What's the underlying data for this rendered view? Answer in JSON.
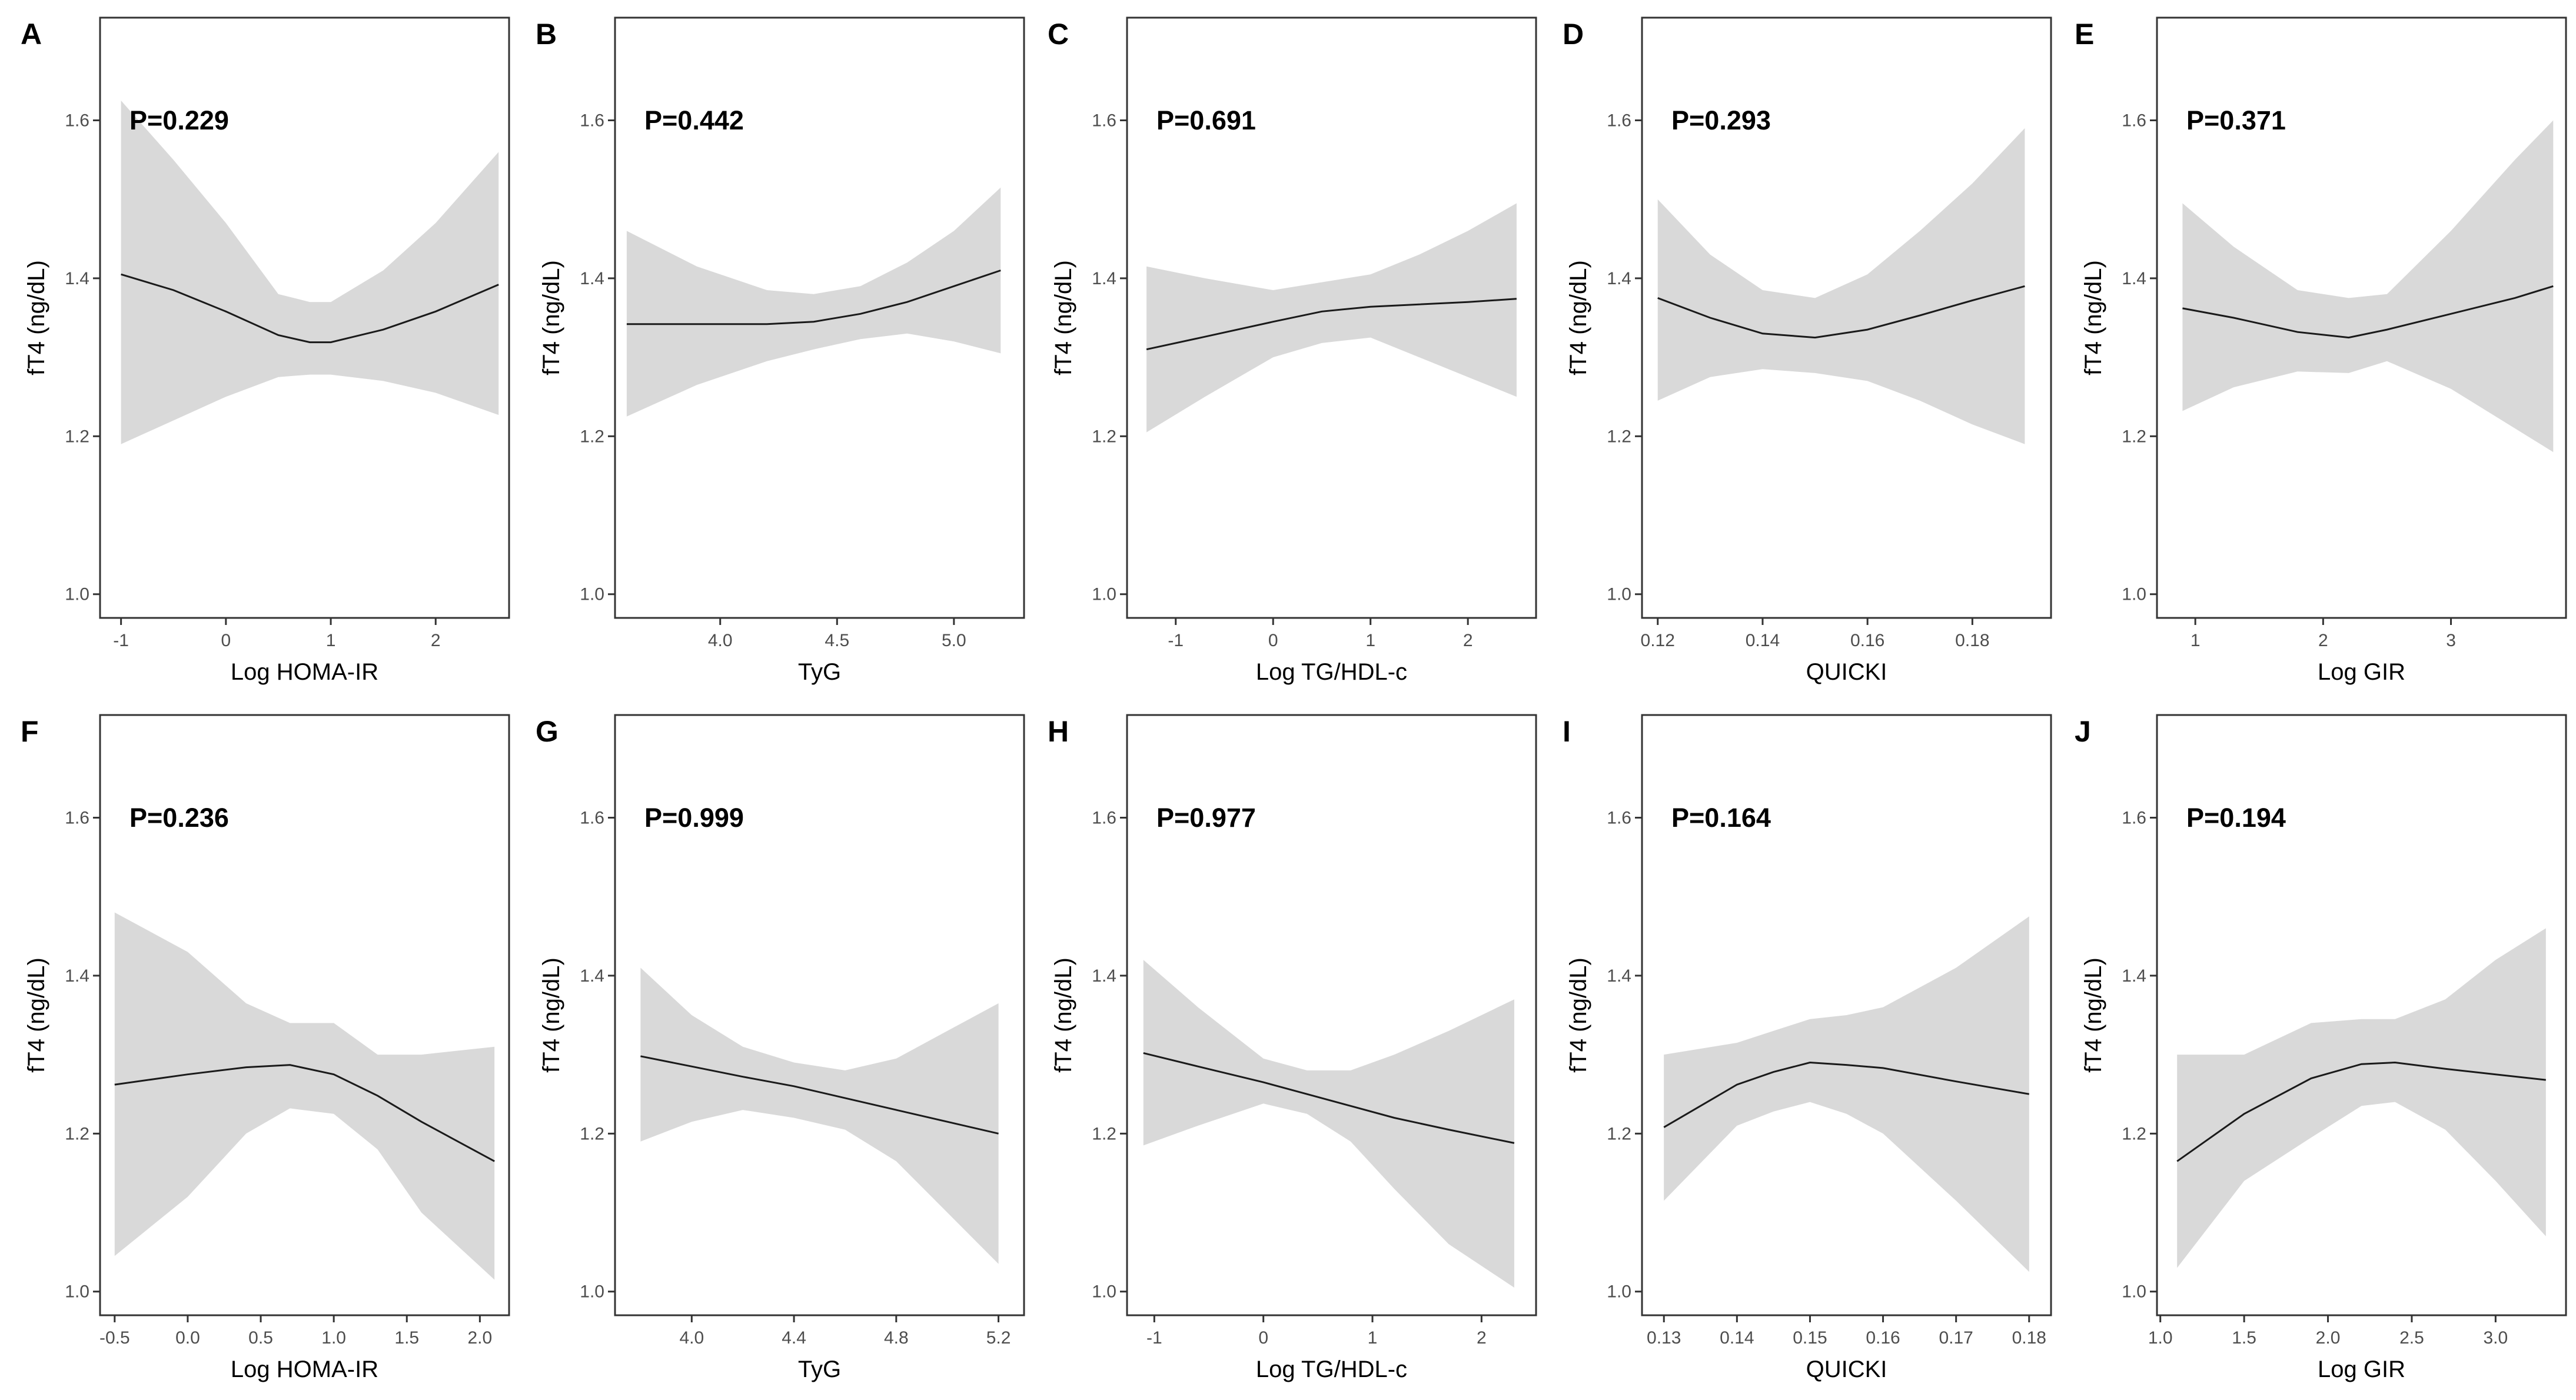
{
  "figure": {
    "y_label": "fT4 (ng/dL)",
    "y_ticks": [
      1.0,
      1.2,
      1.4,
      1.6
    ],
    "y_tick_labels": [
      "1.0",
      "1.2",
      "1.4",
      "1.6"
    ]
  },
  "chart_data": [
    {
      "type": "line",
      "letter": "A",
      "p_label": "P=0.229",
      "xlabel": "Log HOMA-IR",
      "ylabel": "fT4 (ng/dL)",
      "xlim": [
        -1.2,
        2.7
      ],
      "ylim": [
        0.97,
        1.73
      ],
      "x_ticks": [
        -1,
        0,
        1,
        2
      ],
      "x_tick_labels": [
        "-1",
        "0",
        "1",
        "2"
      ],
      "x": [
        -1,
        -0.5,
        0,
        0.5,
        0.8,
        1,
        1.5,
        2,
        2.6
      ],
      "y": [
        1.405,
        1.385,
        1.358,
        1.328,
        1.319,
        1.319,
        1.335,
        1.358,
        1.392
      ],
      "lower": [
        1.19,
        1.22,
        1.25,
        1.275,
        1.278,
        1.278,
        1.27,
        1.255,
        1.227
      ],
      "upper": [
        1.625,
        1.55,
        1.47,
        1.38,
        1.37,
        1.37,
        1.41,
        1.47,
        1.56
      ]
    },
    {
      "type": "line",
      "letter": "B",
      "p_label": "P=0.442",
      "xlabel": "TyG",
      "ylabel": "fT4 (ng/dL)",
      "xlim": [
        3.55,
        5.3
      ],
      "ylim": [
        0.97,
        1.73
      ],
      "x_ticks": [
        4.0,
        4.5,
        5.0
      ],
      "x_tick_labels": [
        "4.0",
        "4.5",
        "5.0"
      ],
      "x": [
        3.6,
        3.9,
        4.2,
        4.4,
        4.6,
        4.8,
        5.0,
        5.2
      ],
      "y": [
        1.342,
        1.342,
        1.342,
        1.345,
        1.355,
        1.37,
        1.39,
        1.41
      ],
      "lower": [
        1.225,
        1.265,
        1.295,
        1.31,
        1.323,
        1.33,
        1.32,
        1.305
      ],
      "upper": [
        1.46,
        1.415,
        1.385,
        1.38,
        1.39,
        1.42,
        1.46,
        1.515
      ]
    },
    {
      "type": "line",
      "letter": "C",
      "p_label": "P=0.691",
      "xlabel": "Log TG/HDL-c",
      "ylabel": "fT4 (ng/dL)",
      "xlim": [
        -1.5,
        2.7
      ],
      "ylim": [
        0.97,
        1.73
      ],
      "x_ticks": [
        -1,
        0,
        1,
        2
      ],
      "x_tick_labels": [
        "-1",
        "0",
        "1",
        "2"
      ],
      "x": [
        -1.3,
        -0.7,
        0,
        0.5,
        1,
        1.5,
        2,
        2.5
      ],
      "y": [
        1.31,
        1.326,
        1.345,
        1.358,
        1.364,
        1.367,
        1.37,
        1.374
      ],
      "lower": [
        1.205,
        1.25,
        1.3,
        1.318,
        1.325,
        1.3,
        1.275,
        1.25
      ],
      "upper": [
        1.415,
        1.4,
        1.385,
        1.395,
        1.405,
        1.43,
        1.46,
        1.495
      ]
    },
    {
      "type": "line",
      "letter": "D",
      "p_label": "P=0.293",
      "xlabel": "QUICKI",
      "ylabel": "fT4 (ng/dL)",
      "xlim": [
        0.117,
        0.195
      ],
      "ylim": [
        0.97,
        1.73
      ],
      "x_ticks": [
        0.12,
        0.14,
        0.16,
        0.18
      ],
      "x_tick_labels": [
        "0.12",
        "0.14",
        "0.16",
        "0.18"
      ],
      "x": [
        0.12,
        0.13,
        0.14,
        0.15,
        0.16,
        0.17,
        0.18,
        0.19
      ],
      "y": [
        1.375,
        1.35,
        1.33,
        1.325,
        1.335,
        1.353,
        1.372,
        1.39
      ],
      "lower": [
        1.245,
        1.275,
        1.285,
        1.28,
        1.27,
        1.245,
        1.215,
        1.19
      ],
      "upper": [
        1.5,
        1.43,
        1.385,
        1.375,
        1.405,
        1.46,
        1.52,
        1.59
      ]
    },
    {
      "type": "line",
      "letter": "E",
      "p_label": "P=0.371",
      "xlabel": "Log GIR",
      "ylabel": "fT4 (ng/dL)",
      "xlim": [
        0.7,
        3.9
      ],
      "ylim": [
        0.97,
        1.73
      ],
      "x_ticks": [
        1,
        2,
        3
      ],
      "x_tick_labels": [
        "1",
        "2",
        "3"
      ],
      "x": [
        0.9,
        1.3,
        1.8,
        2.2,
        2.5,
        3,
        3.5,
        3.8
      ],
      "y": [
        1.362,
        1.35,
        1.332,
        1.325,
        1.335,
        1.355,
        1.375,
        1.39
      ],
      "lower": [
        1.232,
        1.262,
        1.282,
        1.28,
        1.295,
        1.26,
        1.21,
        1.18
      ],
      "upper": [
        1.495,
        1.44,
        1.385,
        1.375,
        1.38,
        1.46,
        1.55,
        1.6
      ]
    },
    {
      "type": "line",
      "letter": "F",
      "p_label": "P=0.236",
      "xlabel": "Log HOMA-IR",
      "ylabel": "fT4 (ng/dL)",
      "xlim": [
        -0.6,
        2.2
      ],
      "ylim": [
        0.97,
        1.73
      ],
      "x_ticks": [
        -0.5,
        0.0,
        0.5,
        1.0,
        1.5,
        2.0
      ],
      "x_tick_labels": [
        "-0.5",
        "0.0",
        "0.5",
        "1.0",
        "1.5",
        "2.0"
      ],
      "x": [
        -0.5,
        0,
        0.4,
        0.7,
        1,
        1.3,
        1.6,
        2.1
      ],
      "y": [
        1.262,
        1.275,
        1.284,
        1.287,
        1.275,
        1.248,
        1.215,
        1.165
      ],
      "lower": [
        1.045,
        1.12,
        1.2,
        1.232,
        1.225,
        1.18,
        1.1,
        1.015
      ],
      "upper": [
        1.48,
        1.43,
        1.365,
        1.34,
        1.34,
        1.3,
        1.3,
        1.31
      ]
    },
    {
      "type": "line",
      "letter": "G",
      "p_label": "P=0.999",
      "xlabel": "TyG",
      "ylabel": "fT4 (ng/dL)",
      "xlim": [
        3.7,
        5.3
      ],
      "ylim": [
        0.97,
        1.73
      ],
      "x_ticks": [
        4.0,
        4.4,
        4.8,
        5.2
      ],
      "x_tick_labels": [
        "4.0",
        "4.4",
        "4.8",
        "5.2"
      ],
      "x": [
        3.8,
        4.0,
        4.2,
        4.4,
        4.6,
        4.8,
        5.0,
        5.2
      ],
      "y": [
        1.298,
        1.285,
        1.272,
        1.26,
        1.245,
        1.23,
        1.215,
        1.2
      ],
      "lower": [
        1.19,
        1.215,
        1.23,
        1.22,
        1.205,
        1.165,
        1.1,
        1.035
      ],
      "upper": [
        1.41,
        1.35,
        1.31,
        1.29,
        1.28,
        1.295,
        1.33,
        1.365
      ]
    },
    {
      "type": "line",
      "letter": "H",
      "p_label": "P=0.977",
      "xlabel": "Log TG/HDL-c",
      "ylabel": "fT4 (ng/dL)",
      "xlim": [
        -1.25,
        2.5
      ],
      "ylim": [
        0.97,
        1.73
      ],
      "x_ticks": [
        -1,
        0,
        1,
        2
      ],
      "x_tick_labels": [
        "-1",
        "0",
        "1",
        "2"
      ],
      "x": [
        -1.1,
        -0.6,
        0,
        0.4,
        0.8,
        1.2,
        1.7,
        2.3
      ],
      "y": [
        1.302,
        1.285,
        1.265,
        1.25,
        1.235,
        1.22,
        1.205,
        1.188
      ],
      "lower": [
        1.185,
        1.21,
        1.238,
        1.225,
        1.19,
        1.13,
        1.06,
        1.005
      ],
      "upper": [
        1.42,
        1.36,
        1.295,
        1.28,
        1.28,
        1.3,
        1.33,
        1.37
      ]
    },
    {
      "type": "line",
      "letter": "I",
      "p_label": "P=0.164",
      "xlabel": "QUICKI",
      "ylabel": "fT4 (ng/dL)",
      "xlim": [
        0.127,
        0.183
      ],
      "ylim": [
        0.97,
        1.73
      ],
      "x_ticks": [
        0.13,
        0.14,
        0.15,
        0.16,
        0.17,
        0.18
      ],
      "x_tick_labels": [
        "0.13",
        "0.14",
        "0.15",
        "0.16",
        "0.17",
        "0.18"
      ],
      "x": [
        0.13,
        0.14,
        0.145,
        0.15,
        0.155,
        0.16,
        0.17,
        0.18
      ],
      "y": [
        1.208,
        1.262,
        1.278,
        1.29,
        1.287,
        1.283,
        1.266,
        1.25
      ],
      "lower": [
        1.115,
        1.21,
        1.228,
        1.24,
        1.225,
        1.2,
        1.115,
        1.025
      ],
      "upper": [
        1.3,
        1.315,
        1.33,
        1.345,
        1.35,
        1.36,
        1.41,
        1.475
      ]
    },
    {
      "type": "line",
      "letter": "J",
      "p_label": "P=0.194",
      "xlabel": "Log GIR",
      "ylabel": "fT4 (ng/dL)",
      "xlim": [
        0.98,
        3.42
      ],
      "ylim": [
        0.97,
        1.73
      ],
      "x_ticks": [
        1.0,
        1.5,
        2.0,
        2.5,
        3.0
      ],
      "x_tick_labels": [
        "1.0",
        "1.5",
        "2.0",
        "2.5",
        "3.0"
      ],
      "x": [
        1.1,
        1.5,
        1.9,
        2.2,
        2.4,
        2.7,
        3.0,
        3.3
      ],
      "y": [
        1.165,
        1.225,
        1.27,
        1.288,
        1.29,
        1.282,
        1.275,
        1.268
      ],
      "lower": [
        1.03,
        1.14,
        1.195,
        1.235,
        1.24,
        1.205,
        1.14,
        1.07
      ],
      "upper": [
        1.3,
        1.3,
        1.34,
        1.345,
        1.345,
        1.37,
        1.42,
        1.46
      ]
    }
  ]
}
